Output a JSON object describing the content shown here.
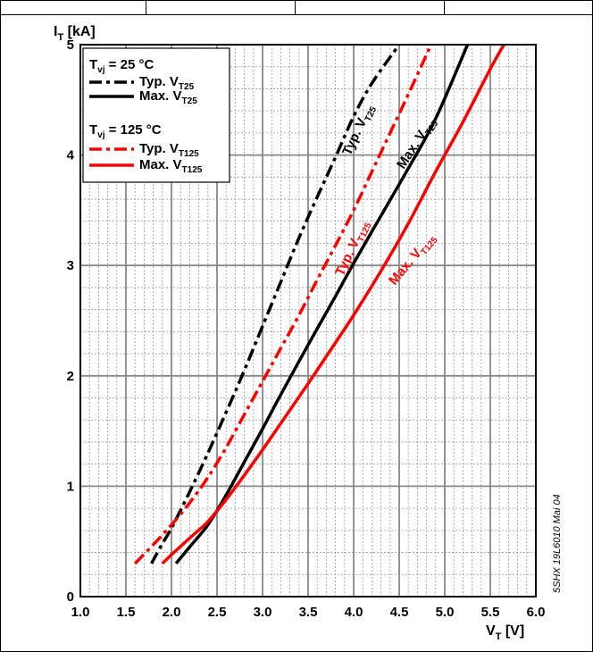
{
  "chart_data": {
    "type": "line",
    "xlabel": {
      "main": "V",
      "sub": "T",
      "unit": " [V]"
    },
    "ylabel": {
      "main": "I",
      "sub": "T",
      "unit": " [kA]"
    },
    "xlim": [
      1.0,
      6.0
    ],
    "ylim": [
      0,
      5
    ],
    "x_ticks": [
      "1.0",
      "1.5",
      "2.0",
      "2.5",
      "3.0",
      "3.5",
      "4.0",
      "4.5",
      "5.0",
      "5.5",
      "6.0"
    ],
    "y_ticks": [
      "0",
      "1",
      "2",
      "3",
      "4",
      "5"
    ],
    "grid": "major and minor",
    "legend_position": "top-left",
    "legend_groups": [
      {
        "main": "T",
        "sub": "vj",
        "suffix": " = 25 °C"
      },
      {
        "main": "T",
        "sub": "vj",
        "suffix": " = 125 °C"
      }
    ],
    "series": [
      {
        "id": "typ25",
        "name": {
          "main": "Typ. V",
          "sub": "T25"
        },
        "color": "#000000",
        "style": "dash-dot",
        "label": {
          "main": "Typ. V",
          "sub": "T25"
        },
        "x": [
          1.78,
          1.9,
          2.0,
          2.2,
          2.4,
          2.6,
          2.8,
          3.0,
          3.2,
          3.4,
          3.6,
          3.8,
          4.0,
          4.2,
          4.5
        ],
        "y": [
          0.3,
          0.48,
          0.62,
          0.95,
          1.3,
          1.67,
          2.05,
          2.45,
          2.85,
          3.25,
          3.62,
          3.98,
          4.35,
          4.65,
          5.0
        ]
      },
      {
        "id": "max25",
        "name": {
          "main": "Max. V",
          "sub": "T25"
        },
        "color": "#000000",
        "style": "solid",
        "label": {
          "main": "Max. V",
          "sub": "T25"
        },
        "x": [
          2.05,
          2.2,
          2.4,
          2.6,
          2.8,
          3.0,
          3.2,
          3.5,
          3.8,
          4.0,
          4.3,
          4.6,
          4.9,
          5.25
        ],
        "y": [
          0.3,
          0.45,
          0.65,
          0.92,
          1.22,
          1.52,
          1.83,
          2.28,
          2.72,
          3.02,
          3.45,
          3.88,
          4.33,
          5.0
        ]
      },
      {
        "id": "typ125",
        "name": {
          "main": "Typ. V",
          "sub": "T125"
        },
        "color": "#ff0000",
        "style": "dash-dot",
        "label": {
          "main": "Typ. V",
          "sub": "T125"
        },
        "x": [
          1.6,
          1.8,
          2.0,
          2.2,
          2.4,
          2.6,
          2.8,
          3.0,
          3.2,
          3.4,
          3.6,
          3.8,
          4.0,
          4.2,
          4.4,
          4.6,
          4.85
        ],
        "y": [
          0.3,
          0.47,
          0.65,
          0.85,
          1.08,
          1.35,
          1.65,
          1.95,
          2.25,
          2.55,
          2.87,
          3.18,
          3.5,
          3.85,
          4.2,
          4.55,
          5.0
        ]
      },
      {
        "id": "max125",
        "name": {
          "main": "Max. V",
          "sub": "T125"
        },
        "color": "#ff0000",
        "style": "solid",
        "label": {
          "main": "Max. V",
          "sub": "T125"
        },
        "x": [
          1.9,
          2.0,
          2.2,
          2.4,
          2.6,
          2.8,
          3.0,
          3.2,
          3.5,
          3.8,
          4.0,
          4.3,
          4.6,
          4.9,
          5.2,
          5.5,
          5.65
        ],
        "y": [
          0.3,
          0.38,
          0.53,
          0.68,
          0.88,
          1.1,
          1.33,
          1.57,
          1.93,
          2.3,
          2.55,
          2.95,
          3.38,
          3.85,
          4.3,
          4.78,
          5.0
        ]
      }
    ],
    "annotation": "5SHX 19L6010 Mai 04"
  }
}
